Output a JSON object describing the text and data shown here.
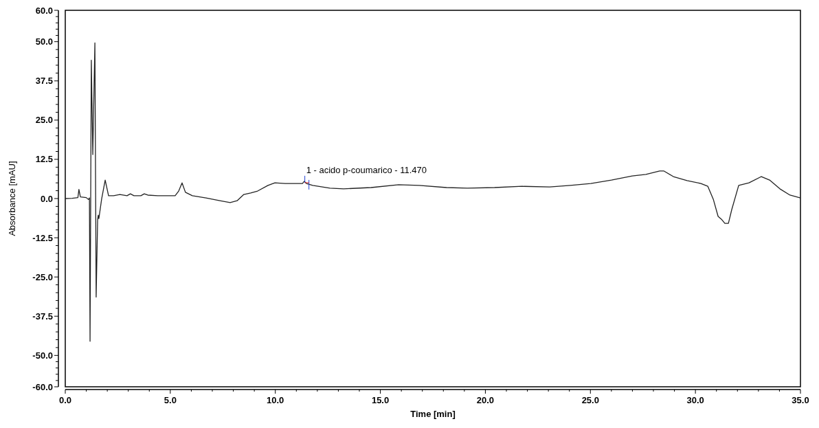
{
  "chart_data": {
    "type": "line",
    "xlabel": "Time [min]",
    "ylabel": "Absorbance [mAU]",
    "xlim": [
      0,
      35
    ],
    "ylim": [
      -60,
      60
    ],
    "xticks": [
      {
        "value": 0,
        "label": "0.0"
      },
      {
        "value": 5,
        "label": "5.0"
      },
      {
        "value": 10,
        "label": "10.0"
      },
      {
        "value": 15,
        "label": "15.0"
      },
      {
        "value": 20,
        "label": "20.0"
      },
      {
        "value": 25,
        "label": "25.0"
      },
      {
        "value": 30,
        "label": "30.0"
      },
      {
        "value": 35,
        "label": "35.0"
      }
    ],
    "yticks": [
      {
        "value": -60,
        "label": "-60.0"
      },
      {
        "value": -50,
        "label": "-50.0"
      },
      {
        "value": -37.5,
        "label": "-37.5"
      },
      {
        "value": -25,
        "label": "-25.0"
      },
      {
        "value": -12.5,
        "label": "-12.5"
      },
      {
        "value": 0,
        "label": "0.0"
      },
      {
        "value": 12.5,
        "label": "12.5"
      },
      {
        "value": 25,
        "label": "25.0"
      },
      {
        "value": 37.5,
        "label": "37.5"
      },
      {
        "value": 50,
        "label": "50.0"
      },
      {
        "value": 60,
        "label": "60.0"
      }
    ],
    "grid": false,
    "marker": "none",
    "line_style": "solid",
    "annotations": [
      {
        "text": "1 - acido p-coumarico - 11.470",
        "x": 11.47,
        "y": 5.5
      }
    ],
    "series": [
      {
        "color": "#222222",
        "x": [
          0,
          0.33,
          0.6,
          0.65,
          0.72,
          1.0,
          1.1,
          1.15,
          1.18,
          1.24,
          1.31,
          1.41,
          1.47,
          1.54,
          1.57,
          1.6,
          1.73,
          1.9,
          2.06,
          2.3,
          2.6,
          2.94,
          3.1,
          3.27,
          3.6,
          3.76,
          3.93,
          4.4,
          5.23,
          5.4,
          5.56,
          5.72,
          6.05,
          6.7,
          7.36,
          7.85,
          8.18,
          8.5,
          8.83,
          9.16,
          9.65,
          9.98,
          10.47,
          10.96,
          11.29,
          11.38,
          11.48,
          11.78,
          12.6,
          13.25,
          14.56,
          15.87,
          16.85,
          18.15,
          19.14,
          20.44,
          21.75,
          23.06,
          24.04,
          25.02,
          26.0,
          26.99,
          27.64,
          28.3,
          28.49,
          28.95,
          29.6,
          30.26,
          30.59,
          30.85,
          31.08,
          31.24,
          31.4,
          31.57,
          31.73,
          32.06,
          32.55,
          33.14,
          33.53,
          34.02,
          34.5,
          35
        ],
        "values": [
          0,
          0.1,
          0.3,
          2.9,
          0.5,
          0.3,
          -0.3,
          0.2,
          -45.5,
          44.1,
          14.0,
          49.6,
          -31.4,
          -6.8,
          -5.3,
          -6.4,
          -0.2,
          5.9,
          0.9,
          0.9,
          1.3,
          0.9,
          1.5,
          0.9,
          0.9,
          1.5,
          1.1,
          0.9,
          0.9,
          2.4,
          5.0,
          2.0,
          0.9,
          0.2,
          -0.7,
          -1.3,
          -0.7,
          1.3,
          1.8,
          2.4,
          4.2,
          5.0,
          4.8,
          4.8,
          4.8,
          5.5,
          4.8,
          4.2,
          3.3,
          3.1,
          3.5,
          4.4,
          4.2,
          3.5,
          3.3,
          3.5,
          3.9,
          3.7,
          4.2,
          4.8,
          5.9,
          7.2,
          7.7,
          8.8,
          8.8,
          7.0,
          5.7,
          4.8,
          3.9,
          -0.2,
          -5.7,
          -6.6,
          -7.9,
          -7.9,
          -3.5,
          4.2,
          5.0,
          7.0,
          5.9,
          3.1,
          1.1,
          0.2
        ]
      }
    ]
  }
}
